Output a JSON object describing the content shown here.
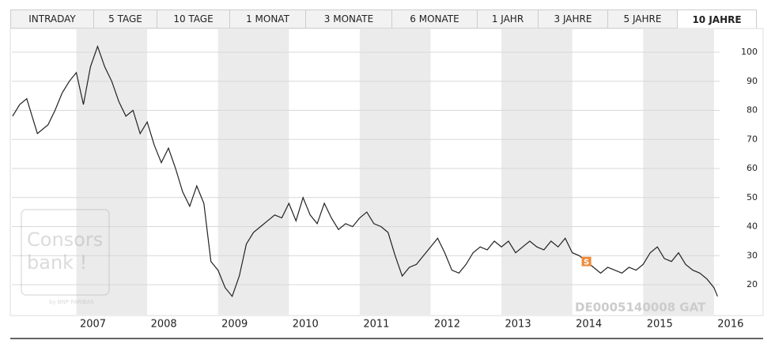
{
  "tabs": [
    "INTRADAY",
    "5 TAGE",
    "10 TAGE",
    "1 MONAT",
    "3 MONATE",
    "6 MONATE",
    "1 JAHR",
    "3 JAHRE",
    "5 JAHRE",
    "10 JAHRE"
  ],
  "chart_data": {
    "type": "line",
    "watermark": "DE0005140008 GAT",
    "logo": {
      "line1": "Consors",
      "line2": "bank !",
      "byline": "by BNP PARIBAS"
    },
    "x": [
      2006.1,
      2006.2,
      2006.3,
      2006.4,
      2006.45,
      2006.6,
      2006.7,
      2006.8,
      2006.9,
      2007.0,
      2007.1,
      2007.2,
      2007.3,
      2007.4,
      2007.5,
      2007.6,
      2007.7,
      2007.8,
      2007.9,
      2008.0,
      2008.1,
      2008.2,
      2008.3,
      2008.4,
      2008.5,
      2008.6,
      2008.7,
      2008.8,
      2008.9,
      2009.0,
      2009.1,
      2009.2,
      2009.3,
      2009.4,
      2009.5,
      2009.6,
      2009.7,
      2009.8,
      2009.9,
      2010.0,
      2010.1,
      2010.2,
      2010.3,
      2010.4,
      2010.5,
      2010.6,
      2010.7,
      2010.8,
      2010.9,
      2011.0,
      2011.1,
      2011.2,
      2011.3,
      2011.4,
      2011.5,
      2011.6,
      2011.7,
      2011.8,
      2011.9,
      2012.0,
      2012.1,
      2012.2,
      2012.3,
      2012.4,
      2012.5,
      2012.6,
      2012.7,
      2012.8,
      2012.9,
      2013.0,
      2013.1,
      2013.2,
      2013.3,
      2013.4,
      2013.5,
      2013.6,
      2013.7,
      2013.8,
      2013.9,
      2014.0,
      2014.1,
      2014.2,
      2014.3,
      2014.4,
      2014.5,
      2014.6,
      2014.7,
      2014.8,
      2014.9,
      2015.0,
      2015.1,
      2015.2,
      2015.3,
      2015.4,
      2015.5,
      2015.6,
      2015.7,
      2015.8,
      2015.9,
      2016.0,
      2016.05
    ],
    "series": [
      {
        "name": "DE0005140008",
        "color": "#222222",
        "values": [
          78,
          82,
          84,
          76,
          72,
          75,
          80,
          86,
          90,
          93,
          82,
          95,
          102,
          95,
          90,
          83,
          78,
          80,
          72,
          76,
          68,
          62,
          67,
          60,
          52,
          47,
          54,
          48,
          28,
          25,
          19,
          16,
          23,
          34,
          38,
          40,
          42,
          44,
          43,
          48,
          42,
          50,
          44,
          41,
          48,
          43,
          39,
          41,
          40,
          43,
          45,
          41,
          40,
          38,
          30,
          23,
          26,
          27,
          30,
          33,
          36,
          31,
          25,
          24,
          27,
          31,
          33,
          32,
          35,
          33,
          35,
          31,
          33,
          35,
          33,
          32,
          35,
          33,
          36,
          31,
          30,
          28,
          26,
          24,
          26,
          25,
          24,
          26,
          25,
          27,
          31,
          33,
          29,
          28,
          31,
          27,
          25,
          24,
          22,
          19,
          16
        ]
      }
    ],
    "xlim": [
      2006.09,
      2016.08
    ],
    "xticks": [
      2007,
      2008,
      2009,
      2010,
      2011,
      2012,
      2013,
      2014,
      2015,
      2016
    ],
    "shaded_years": [
      2007,
      2009,
      2011,
      2013,
      2015
    ],
    "ylim": [
      9.66,
      106
    ],
    "yticks": [
      20,
      30,
      40,
      50,
      60,
      70,
      80,
      90,
      100
    ],
    "grid": true,
    "annotations": [
      {
        "text": "S",
        "x": 2014.2,
        "y": 28
      }
    ]
  }
}
